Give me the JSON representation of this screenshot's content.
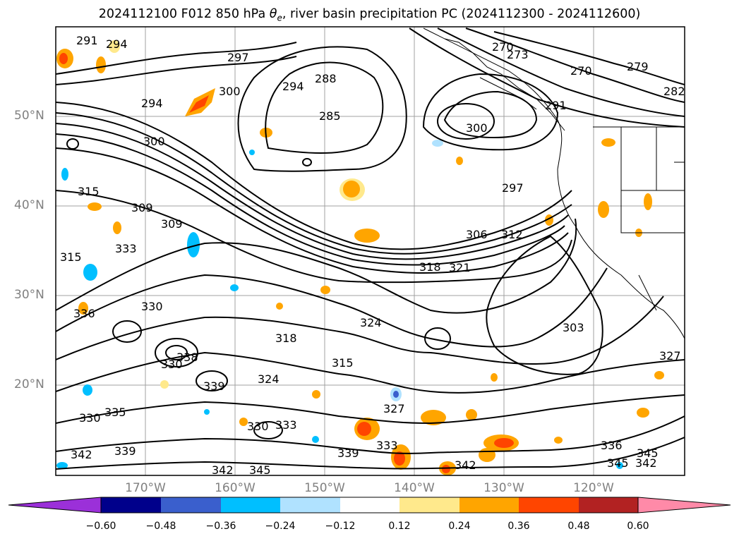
{
  "title": "2024112100 F012 850 hPa θe, river basin precipitation PC (2024112300 - 2024112600)",
  "title_parts": {
    "prefix": "2024112100 F012 850 hPa ",
    "theta": "θ",
    "sub": "e",
    "suffix": ", river basin precipitation PC (2024112300 - 2024112600)"
  },
  "map": {
    "lat_labels": [
      "50°N",
      "40°N",
      "30°N",
      "20°N"
    ],
    "lon_labels": [
      "170°W",
      "160°W",
      "150°W",
      "140°W",
      "130°W",
      "120°W"
    ],
    "contour_labels": [
      "291",
      "294",
      "294",
      "297",
      "300",
      "294",
      "288",
      "285",
      "270",
      "273",
      "270",
      "279",
      "282",
      "291",
      "300",
      "300",
      "297",
      "315",
      "309",
      "309",
      "315",
      "333",
      "306",
      "312",
      "318",
      "321",
      "336",
      "330",
      "324",
      "303",
      "318",
      "327",
      "330",
      "315",
      "324",
      "338",
      "339",
      "330",
      "333",
      "327",
      "333",
      "336",
      "345",
      "342",
      "339",
      "342",
      "345",
      "342",
      "345",
      "342",
      "330",
      "335",
      "339"
    ],
    "colors": {
      "ocean_bg": "#ffffff",
      "contour": "#000000",
      "grid": "#a0a0a0"
    }
  },
  "colorbar": {
    "tick_labels": [
      "−0.60",
      "−0.48",
      "−0.36",
      "−0.24",
      "−0.12",
      "0.12",
      "0.24",
      "0.36",
      "0.48",
      "0.60"
    ],
    "colors": [
      "#9b30d9",
      "#00008b",
      "#3a5fcd",
      "#00bfff",
      "#b0e2ff",
      "#ffffff",
      "#ffe98c",
      "#ffa500",
      "#ff4500",
      "#b22222",
      "#ff8aa8"
    ]
  }
}
